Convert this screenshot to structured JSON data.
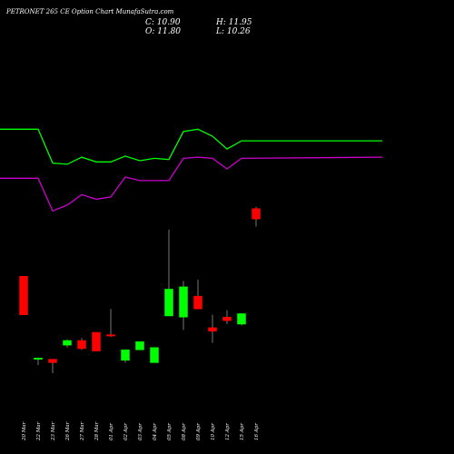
{
  "header": {
    "title": "PETRONET 265 CE Option Chart MunafaSutra.com",
    "close": "C: 10.90",
    "high": "H: 11.95",
    "open": "O: 11.80",
    "low": "L: 10.26"
  },
  "colors": {
    "background": "#000000",
    "up": "#00ff00",
    "down": "#ff0000",
    "upper_line": "#00ff00",
    "lower_line": "#cc00cc",
    "text": "#ffffff"
  },
  "chart_data": {
    "type": "candlestick",
    "categories": [
      "20 Mar",
      "22 Mar",
      "23 Mar",
      "26 Mar",
      "27 Mar",
      "28 Mar",
      "01 Apr",
      "02 Apr",
      "03 Apr",
      "04 Apr",
      "05 Apr",
      "08 Apr",
      "09 Apr",
      "10 Apr",
      "12 Apr",
      "15 Apr",
      "16 Apr"
    ],
    "candles": [
      {
        "open": 6.0,
        "high": 6.0,
        "low": 2.7,
        "close": 2.7
      },
      {
        "open": -1.0,
        "high": -1.0,
        "low": -1.6,
        "close": -1.0
      },
      {
        "open": -1.1,
        "high": -1.1,
        "low": -2.3,
        "close": -1.4
      },
      {
        "open": 0.1,
        "high": 0.6,
        "low": -0.1,
        "close": 0.5
      },
      {
        "open": 0.5,
        "high": 0.7,
        "low": -0.3,
        "close": -0.2
      },
      {
        "open": 1.2,
        "high": 1.2,
        "low": -0.4,
        "close": -0.4
      },
      {
        "open": 1.0,
        "high": 3.2,
        "low": 0.8,
        "close": 0.9
      },
      {
        "open": -1.2,
        "high": -0.3,
        "low": -1.4,
        "close": -0.3
      },
      {
        "open": -0.3,
        "high": 0.4,
        "low": -0.3,
        "close": 0.4
      },
      {
        "open": -1.4,
        "high": -0.1,
        "low": -1.4,
        "close": -0.1
      },
      {
        "open": 2.6,
        "high": 10.0,
        "low": 2.6,
        "close": 4.9
      },
      {
        "open": 2.5,
        "high": 5.6,
        "low": 1.4,
        "close": 5.1
      },
      {
        "open": 4.3,
        "high": 5.7,
        "low": 3.2,
        "close": 3.2
      },
      {
        "open": 1.6,
        "high": 2.7,
        "low": 0.3,
        "close": 1.3
      },
      {
        "open": 2.5,
        "high": 3.1,
        "low": 1.9,
        "close": 2.2
      },
      {
        "open": 1.9,
        "high": 2.8,
        "low": 1.8,
        "close": 2.8
      },
      {
        "open": 11.8,
        "high": 11.95,
        "low": 10.26,
        "close": 10.9
      }
    ],
    "series": [
      {
        "color": "#00ff00",
        "values": [
          18.6,
          18.6,
          15.7,
          15.6,
          16.2,
          15.8,
          15.8,
          16.3,
          15.9,
          16.1,
          16.0,
          18.4,
          18.6,
          18.0,
          16.9,
          17.6,
          17.6
        ]
      },
      {
        "color": "#cc00cc",
        "values": [
          14.4,
          14.4,
          11.6,
          12.1,
          13.0,
          12.6,
          12.8,
          14.5,
          14.2,
          14.2,
          14.2,
          16.1,
          16.2,
          16.1,
          15.2,
          16.1,
          16.2
        ]
      }
    ],
    "ylim": [
      -3,
      25
    ]
  }
}
